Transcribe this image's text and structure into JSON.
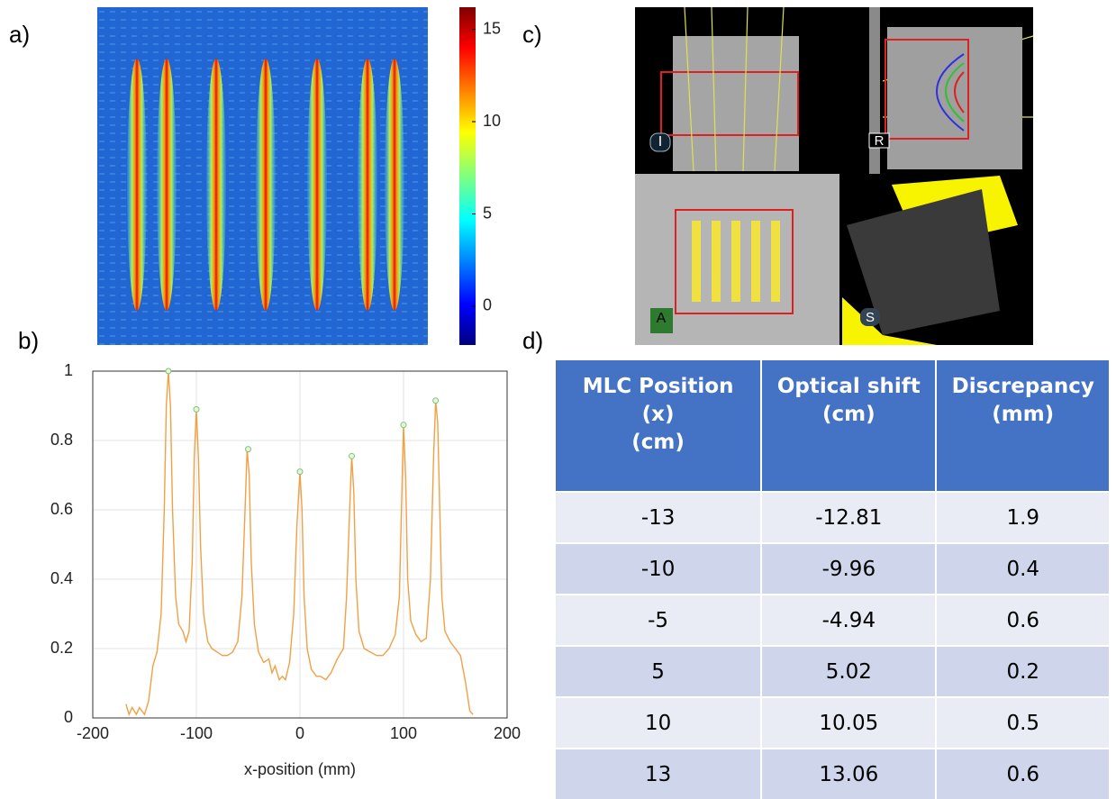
{
  "chart_data": [
    {
      "type": "heatmap",
      "label": "a)",
      "zlim": [
        -2.1,
        16.2
      ],
      "zticks": [
        0,
        5,
        10,
        15
      ]
    },
    {
      "type": "line",
      "label": "b)",
      "xlabel": "x-position (mm)",
      "xlim": [
        -200,
        200
      ],
      "xticks": [
        -200,
        -100,
        0,
        100,
        200
      ],
      "ylim": [
        0,
        1
      ],
      "yticks": [
        0,
        0.2,
        0.4,
        0.6,
        0.8,
        1
      ],
      "grid": true,
      "series": [
        {
          "color": "#f2a044",
          "x": [
            -168,
            -165,
            -162,
            -158,
            -155,
            -150,
            -146,
            -142,
            -138,
            -134,
            -131,
            -129,
            -127,
            -125,
            -123,
            -120,
            -117,
            -113,
            -110,
            -107,
            -104,
            -102,
            -100,
            -98,
            -96,
            -93,
            -89,
            -85,
            -80,
            -75,
            -70,
            -65,
            -60,
            -56,
            -53,
            -51,
            -49,
            -47,
            -44,
            -40,
            -35,
            -30,
            -27,
            -24,
            -20,
            -17,
            -14,
            -10,
            -6,
            -3,
            0,
            2,
            4,
            7,
            11,
            16,
            20,
            25,
            30,
            36,
            42,
            45,
            48,
            50,
            52,
            54,
            57,
            62,
            68,
            74,
            80,
            86,
            92,
            96,
            98,
            100,
            102,
            104,
            107,
            112,
            117,
            122,
            126,
            129,
            131,
            133,
            135,
            137,
            140,
            145,
            150,
            155,
            160,
            164,
            167
          ],
          "values": [
            0.04,
            0.01,
            0.03,
            0.01,
            0.03,
            0.01,
            0.05,
            0.15,
            0.19,
            0.3,
            0.6,
            0.9,
            1.0,
            0.9,
            0.6,
            0.35,
            0.27,
            0.25,
            0.22,
            0.25,
            0.45,
            0.75,
            0.89,
            0.75,
            0.5,
            0.3,
            0.22,
            0.2,
            0.19,
            0.18,
            0.18,
            0.19,
            0.22,
            0.35,
            0.6,
            0.775,
            0.7,
            0.45,
            0.27,
            0.19,
            0.16,
            0.17,
            0.13,
            0.15,
            0.11,
            0.12,
            0.11,
            0.16,
            0.3,
            0.55,
            0.71,
            0.6,
            0.35,
            0.2,
            0.14,
            0.12,
            0.12,
            0.11,
            0.13,
            0.17,
            0.2,
            0.35,
            0.6,
            0.755,
            0.65,
            0.4,
            0.25,
            0.2,
            0.19,
            0.18,
            0.18,
            0.2,
            0.24,
            0.35,
            0.6,
            0.845,
            0.7,
            0.4,
            0.28,
            0.24,
            0.22,
            0.23,
            0.4,
            0.75,
            0.915,
            0.85,
            0.6,
            0.35,
            0.25,
            0.22,
            0.2,
            0.18,
            0.1,
            0.02,
            0.01
          ]
        },
        {
          "color": "#7cc47c",
          "marker": true,
          "x": [
            -127,
            -100,
            -50,
            0,
            50,
            100,
            131
          ],
          "values": [
            1.0,
            0.89,
            0.775,
            0.71,
            0.755,
            0.845,
            0.915
          ]
        }
      ]
    }
  ],
  "screenshot": {
    "label": "c)",
    "views": [
      "I",
      "R",
      "A",
      "S"
    ]
  },
  "table": {
    "label": "d)",
    "header": [
      [
        "MLC Position",
        "(x)",
        "(cm)"
      ],
      [
        "Optical shift",
        "(cm)"
      ],
      [
        "Discrepancy",
        "(mm)"
      ]
    ],
    "rows": [
      [
        -13,
        -12.81,
        1.9
      ],
      [
        -10,
        -9.96,
        0.4
      ],
      [
        -5,
        -4.94,
        0.6
      ],
      [
        5,
        5.02,
        0.2
      ],
      [
        10,
        10.05,
        0.5
      ],
      [
        13,
        13.06,
        0.6
      ]
    ]
  }
}
